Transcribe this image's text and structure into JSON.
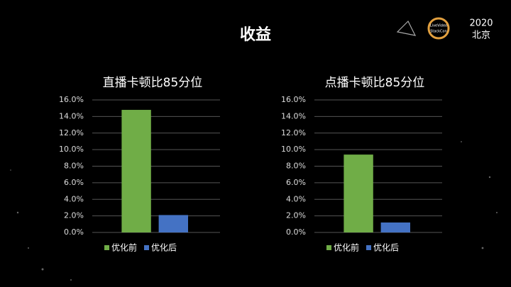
{
  "slide": {
    "title": "收益",
    "logo_lines": [
      "LiveVideo",
      "StackCon"
    ],
    "event_year": "2020",
    "event_city": "北京"
  },
  "chart_data": [
    {
      "type": "bar",
      "title": "直播卡顿比85分位",
      "categories": [
        null
      ],
      "series": [
        {
          "name": "优化前",
          "color": "#70ad47",
          "values": [
            14.8
          ]
        },
        {
          "name": "优化后",
          "color": "#4472c4",
          "values": [
            2.1
          ]
        }
      ],
      "ylim": [
        0,
        16
      ],
      "yticks": [
        {
          "value": 0,
          "label": "0.0%"
        },
        {
          "value": 2,
          "label": "2.0%"
        },
        {
          "value": 4,
          "label": "4.0%"
        },
        {
          "value": 6,
          "label": "6.0%"
        },
        {
          "value": 8,
          "label": "8.0%"
        },
        {
          "value": 10,
          "label": "10.0%"
        },
        {
          "value": 12,
          "label": "12.0%"
        },
        {
          "value": 14,
          "label": "14.0%"
        },
        {
          "value": 16,
          "label": "16.0%"
        }
      ],
      "grid": true,
      "legend": "bottom"
    },
    {
      "type": "bar",
      "title": "点播卡顿比85分位",
      "categories": [
        null
      ],
      "series": [
        {
          "name": "优化前",
          "color": "#70ad47",
          "values": [
            9.4
          ]
        },
        {
          "name": "优化后",
          "color": "#4472c4",
          "values": [
            1.2
          ]
        }
      ],
      "ylim": [
        0,
        16
      ],
      "yticks": [
        {
          "value": 0,
          "label": "0.0%"
        },
        {
          "value": 2,
          "label": "2.0%"
        },
        {
          "value": 4,
          "label": "4.0%"
        },
        {
          "value": 6,
          "label": "6.0%"
        },
        {
          "value": 8,
          "label": "8.0%"
        },
        {
          "value": 10,
          "label": "10.0%"
        },
        {
          "value": 12,
          "label": "12.0%"
        },
        {
          "value": 14,
          "label": "14.0%"
        },
        {
          "value": 16,
          "label": "16.0%"
        }
      ],
      "grid": true,
      "legend": "bottom"
    }
  ]
}
